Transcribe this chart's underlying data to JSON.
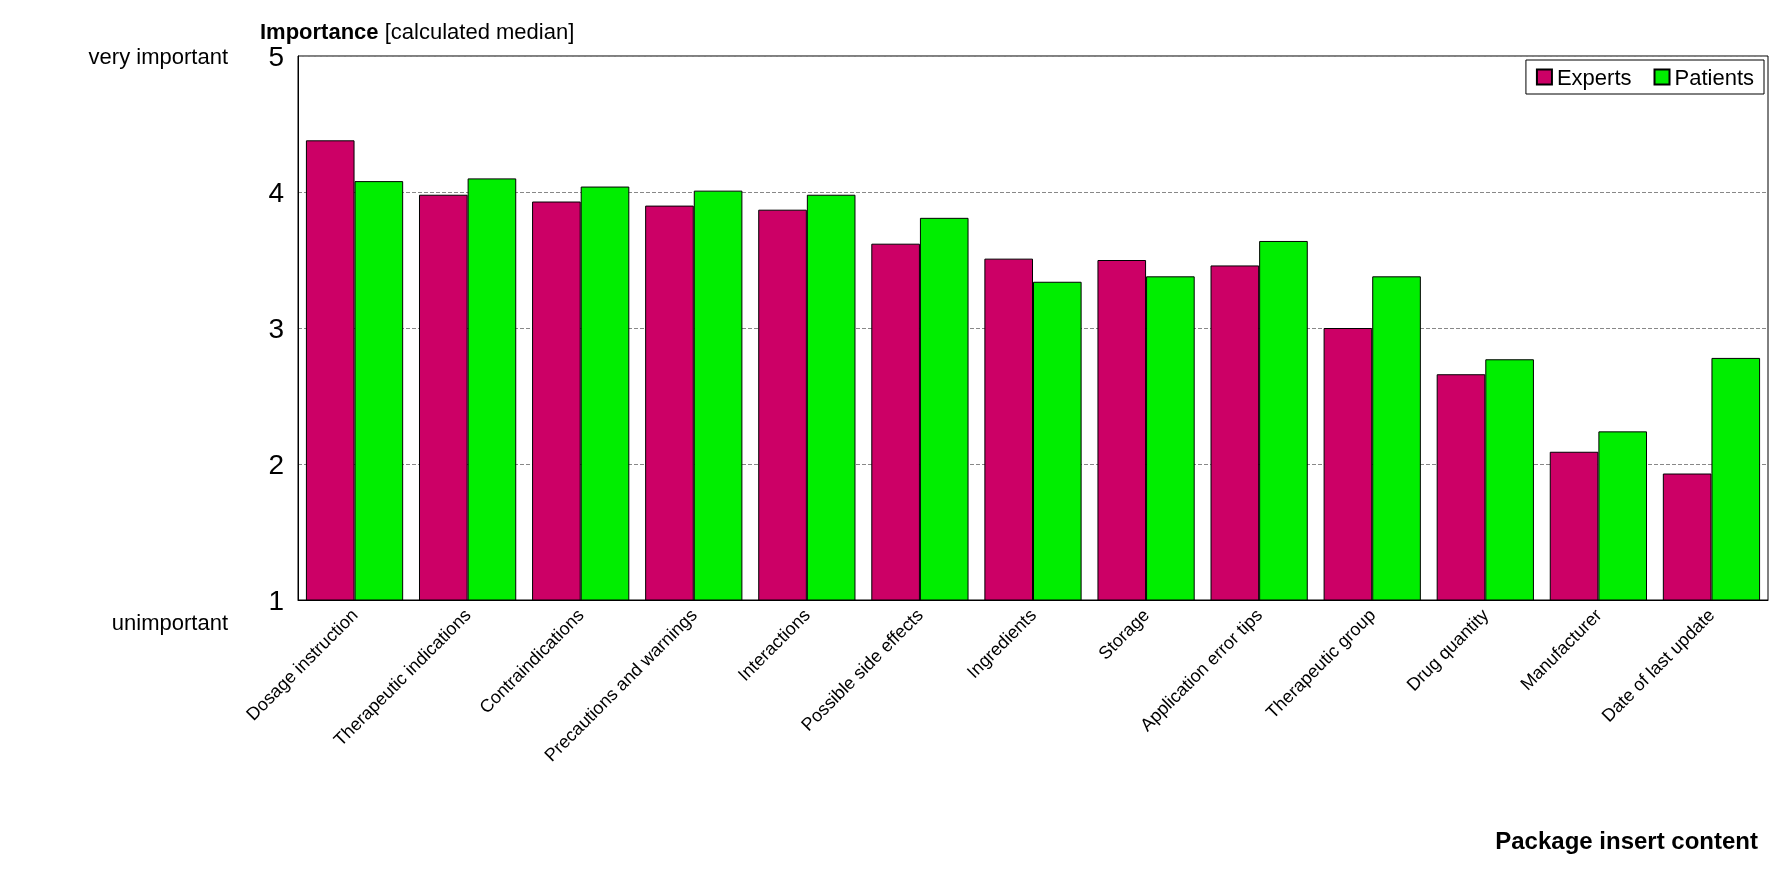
{
  "chart_data": {
    "type": "bar",
    "ylabel": "Importance [calculated median]",
    "xlabel": "Package insert content",
    "categories": [
      "Dosage instruction",
      "Therapeutic indications",
      "Contraindications",
      "Precautions and warnings",
      "Interactions",
      "Possible side effects",
      "Ingredients",
      "Storage",
      "Application error tips",
      "Therapeutic group",
      "Drug quantity",
      "Manufacturer",
      "Date of last update"
    ],
    "series": [
      {
        "name": "Experts",
        "color": "#cc0066",
        "values": [
          4.38,
          3.98,
          3.93,
          3.9,
          3.87,
          3.62,
          3.51,
          3.5,
          3.46,
          3.0,
          2.66,
          2.09,
          1.93
        ]
      },
      {
        "name": "Patients",
        "color": "#00ee00",
        "values": [
          4.08,
          4.1,
          4.04,
          4.01,
          3.98,
          3.81,
          3.34,
          3.38,
          3.64,
          3.38,
          2.77,
          2.24,
          2.78
        ]
      }
    ],
    "ylim": [
      1,
      5
    ],
    "yticks": [
      1,
      2,
      3,
      4,
      5
    ],
    "annotations": [
      "very important",
      "unimportant"
    ],
    "grid": "y",
    "legend": "top right"
  }
}
